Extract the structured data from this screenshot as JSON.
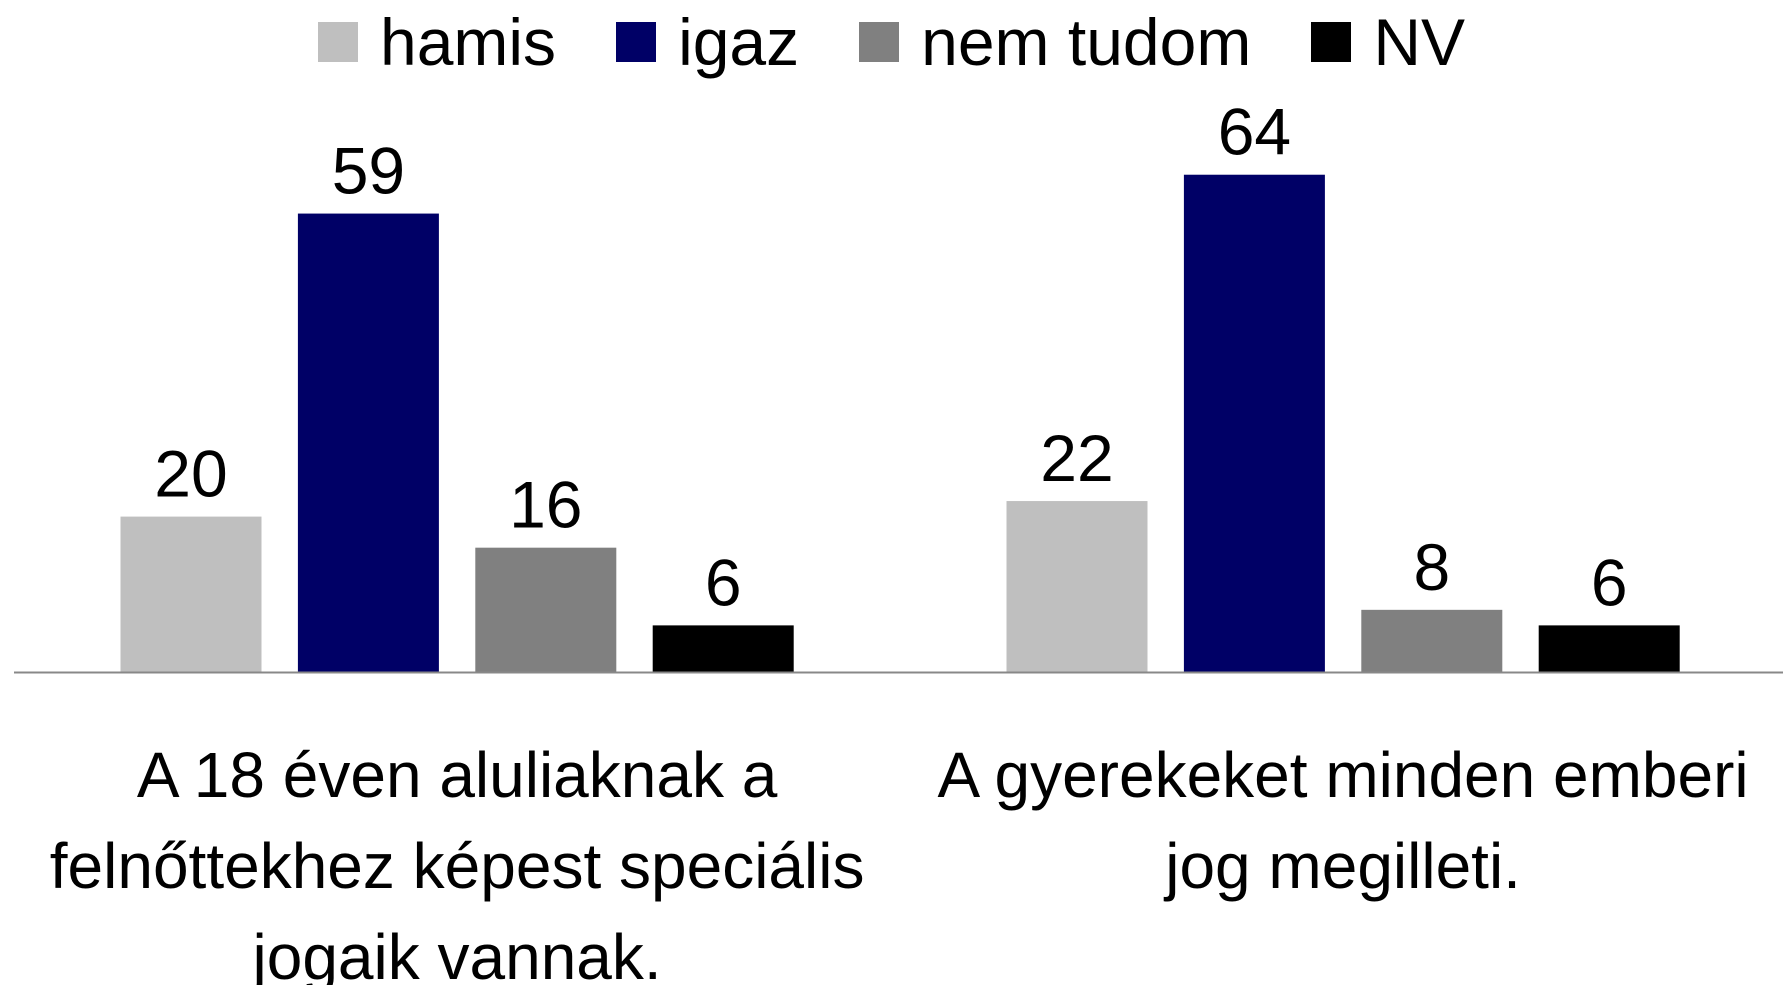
{
  "chart_data": {
    "type": "bar",
    "categories": [
      "A 18 éven aluliaknak a felnőttekhez képest speciális jogaik vannak.",
      "A gyerekeket minden emberi jog megilleti."
    ],
    "series": [
      {
        "name": "hamis",
        "color": "#bfbfbf",
        "values": [
          20,
          22
        ]
      },
      {
        "name": "igaz",
        "color": "#000066",
        "values": [
          59,
          64
        ]
      },
      {
        "name": "nem tudom",
        "color": "#808080",
        "values": [
          16,
          8
        ]
      },
      {
        "name": "NV",
        "color": "#000000",
        "values": [
          6,
          6
        ]
      }
    ],
    "legend": "top"
  }
}
